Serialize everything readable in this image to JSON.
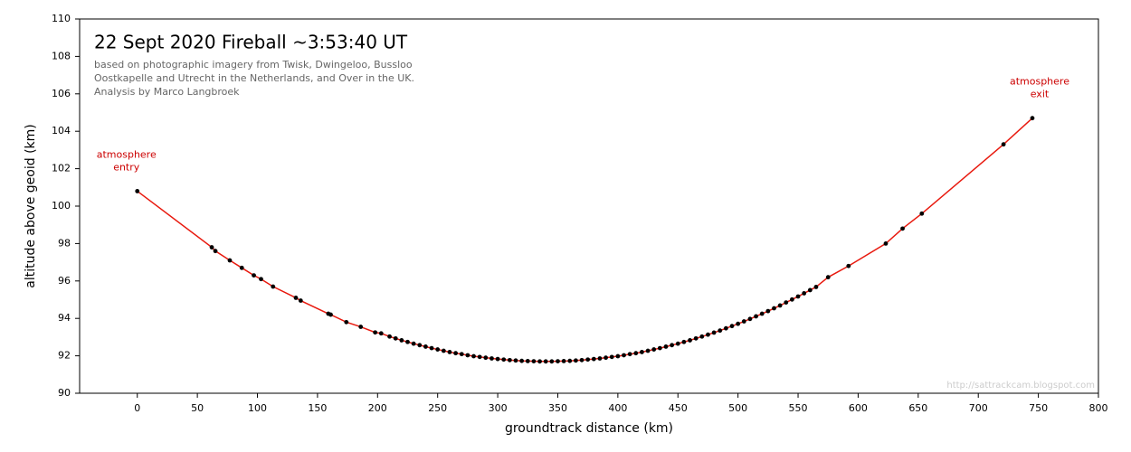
{
  "chart_data": {
    "type": "line",
    "title": "22 Sept 2020 Fireball  ~3:53:40 UT",
    "subtitle": [
      "based on photographic imagery from Twisk, Dwingeloo, Bussloo",
      "Oostkapelle and Utrecht in the Netherlands, and Over in the UK.",
      "Analysis by Marco Langbroek"
    ],
    "x_label": "groundtrack distance  (km)",
    "y_label": "altitude above geoid  (km)",
    "watermark": "http://sattrackcam.blogspot.com",
    "annotations": [
      {
        "text": [
          "atmosphere",
          "entry"
        ],
        "color": "#cc0000"
      },
      {
        "text": [
          "atmosphere",
          "exit"
        ],
        "color": "#cc0000"
      }
    ],
    "xlim": [
      -48,
      800
    ],
    "ylim": [
      90,
      110
    ],
    "xticks": [
      0,
      50,
      100,
      150,
      200,
      250,
      300,
      350,
      400,
      450,
      500,
      550,
      600,
      650,
      700,
      750,
      800
    ],
    "yticks": [
      90,
      92,
      94,
      96,
      98,
      100,
      102,
      104,
      106,
      108,
      110
    ],
    "grid": false,
    "series": [
      {
        "color": "#e8190e",
        "marker_color": "#000000",
        "x": [
          0,
          62,
          65,
          77,
          87,
          97,
          103,
          113,
          132,
          136,
          159,
          161,
          174,
          186,
          198,
          203,
          210,
          215,
          220,
          225,
          230,
          235,
          240,
          245,
          250,
          255,
          260,
          265,
          270,
          275,
          280,
          285,
          290,
          295,
          300,
          305,
          310,
          315,
          320,
          325,
          330,
          335,
          340,
          345,
          350,
          355,
          360,
          365,
          370,
          375,
          380,
          385,
          390,
          395,
          400,
          405,
          410,
          415,
          420,
          425,
          430,
          435,
          440,
          445,
          450,
          455,
          460,
          465,
          470,
          475,
          480,
          485,
          490,
          495,
          500,
          505,
          510,
          515,
          520,
          525,
          530,
          535,
          540,
          545,
          550,
          555,
          560,
          565,
          575,
          592,
          623,
          637,
          653,
          721,
          745
        ],
        "values": [
          100.8,
          97.8,
          97.6,
          97.1,
          96.7,
          96.3,
          96.1,
          95.7,
          95.1,
          94.95,
          94.25,
          94.2,
          93.8,
          93.55,
          93.25,
          93.2,
          93.03,
          92.93,
          92.83,
          92.74,
          92.65,
          92.57,
          92.49,
          92.41,
          92.34,
          92.27,
          92.2,
          92.14,
          92.09,
          92.03,
          91.98,
          91.94,
          91.9,
          91.86,
          91.83,
          91.8,
          91.77,
          91.75,
          91.73,
          91.72,
          91.71,
          91.7,
          91.7,
          91.7,
          91.71,
          91.72,
          91.73,
          91.75,
          91.77,
          91.8,
          91.83,
          91.86,
          91.9,
          91.94,
          91.98,
          92.03,
          92.09,
          92.14,
          92.2,
          92.27,
          92.34,
          92.41,
          92.49,
          92.57,
          92.65,
          92.74,
          92.83,
          92.93,
          93.03,
          93.13,
          93.24,
          93.35,
          93.47,
          93.59,
          93.71,
          93.84,
          93.97,
          94.11,
          94.25,
          94.39,
          94.54,
          94.69,
          94.85,
          95.01,
          95.17,
          95.34,
          95.51,
          95.68,
          96.2,
          96.8,
          98.0,
          98.8,
          99.6,
          103.3,
          104.7
        ]
      }
    ]
  }
}
